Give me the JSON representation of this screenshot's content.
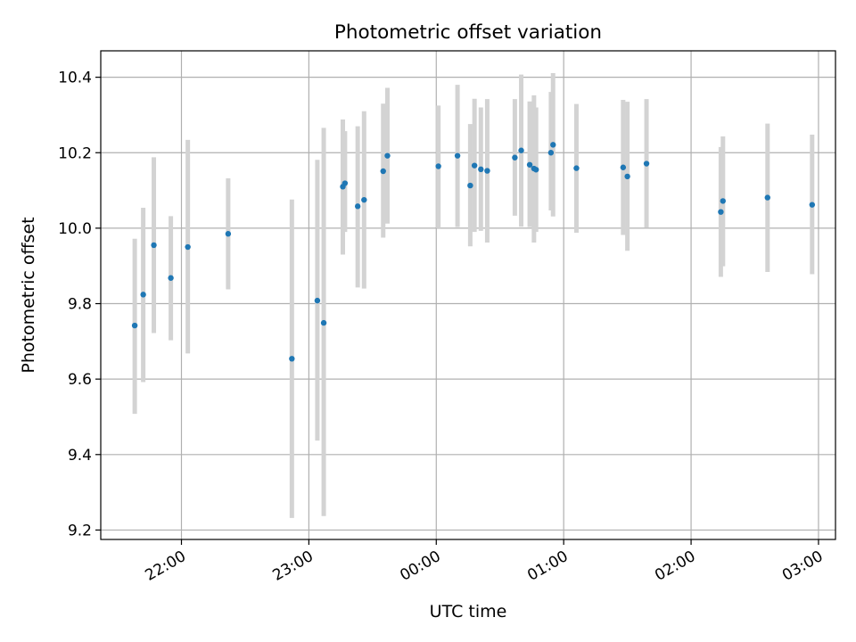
{
  "chart_data": {
    "type": "scatter",
    "title": "Photometric offset variation",
    "xlabel": "UTC time",
    "ylabel": "Photometric offset",
    "x_unit": "UTC time of night (evening date → next date)",
    "xlim": [
      "21:22",
      "03:08"
    ],
    "ylim": [
      9.175,
      10.47
    ],
    "x_ticks": [
      "22:00",
      "23:00",
      "00:00",
      "01:00",
      "02:00",
      "03:00"
    ],
    "y_ticks": [
      "9.2",
      "9.4",
      "9.6",
      "9.8",
      "10.0",
      "10.2",
      "10.4"
    ],
    "grid": true,
    "colors": {
      "points": "#1f77b4",
      "errorbars": "#d3d3d3",
      "grid": "#b0b0b0"
    },
    "series": [
      {
        "points": [
          {
            "t": "21:38",
            "y": 9.742,
            "lo": 9.508,
            "hi": 9.972
          },
          {
            "t": "21:42",
            "y": 9.824,
            "lo": 9.592,
            "hi": 10.054
          },
          {
            "t": "21:47",
            "y": 9.955,
            "lo": 9.722,
            "hi": 10.188
          },
          {
            "t": "21:55",
            "y": 9.868,
            "lo": 9.703,
            "hi": 10.032
          },
          {
            "t": "22:03",
            "y": 9.95,
            "lo": 9.668,
            "hi": 10.234
          },
          {
            "t": "22:22",
            "y": 9.985,
            "lo": 9.838,
            "hi": 10.132
          },
          {
            "t": "22:52",
            "y": 9.654,
            "lo": 9.232,
            "hi": 10.076
          },
          {
            "t": "23:04",
            "y": 9.808,
            "lo": 9.437,
            "hi": 10.181
          },
          {
            "t": "23:07",
            "y": 9.749,
            "lo": 9.237,
            "hi": 10.266
          },
          {
            "t": "23:16",
            "y": 10.11,
            "lo": 9.93,
            "hi": 10.288
          },
          {
            "t": "23:17",
            "y": 10.119,
            "lo": 9.99,
            "hi": 10.257
          },
          {
            "t": "23:23",
            "y": 10.058,
            "lo": 9.843,
            "hi": 10.27
          },
          {
            "t": "23:26",
            "y": 10.075,
            "lo": 9.84,
            "hi": 10.31
          },
          {
            "t": "23:35",
            "y": 10.151,
            "lo": 9.975,
            "hi": 10.33
          },
          {
            "t": "23:37",
            "y": 10.192,
            "lo": 10.012,
            "hi": 10.372
          },
          {
            "t": "00:01",
            "y": 10.164,
            "lo": 10.0,
            "hi": 10.325
          },
          {
            "t": "00:10",
            "y": 10.192,
            "lo": 10.003,
            "hi": 10.38
          },
          {
            "t": "00:16",
            "y": 10.113,
            "lo": 9.952,
            "hi": 10.276
          },
          {
            "t": "00:18",
            "y": 10.166,
            "lo": 9.99,
            "hi": 10.343
          },
          {
            "t": "00:21",
            "y": 10.156,
            "lo": 9.993,
            "hi": 10.32
          },
          {
            "t": "00:24",
            "y": 10.152,
            "lo": 9.962,
            "hi": 10.342
          },
          {
            "t": "00:37",
            "y": 10.187,
            "lo": 10.033,
            "hi": 10.342
          },
          {
            "t": "00:40",
            "y": 10.206,
            "lo": 10.004,
            "hi": 10.407
          },
          {
            "t": "00:44",
            "y": 10.168,
            "lo": 10.003,
            "hi": 10.336
          },
          {
            "t": "00:46",
            "y": 10.158,
            "lo": 9.962,
            "hi": 10.352
          },
          {
            "t": "00:47",
            "y": 10.155,
            "lo": 9.99,
            "hi": 10.32
          },
          {
            "t": "00:54",
            "y": 10.2,
            "lo": 10.047,
            "hi": 10.361
          },
          {
            "t": "00:55",
            "y": 10.221,
            "lo": 10.031,
            "hi": 10.411
          },
          {
            "t": "01:06",
            "y": 10.159,
            "lo": 9.988,
            "hi": 10.329
          },
          {
            "t": "01:28",
            "y": 10.161,
            "lo": 9.982,
            "hi": 10.34
          },
          {
            "t": "01:30",
            "y": 10.137,
            "lo": 9.94,
            "hi": 10.335
          },
          {
            "t": "01:39",
            "y": 10.171,
            "lo": 10.001,
            "hi": 10.342
          },
          {
            "t": "02:14",
            "y": 10.043,
            "lo": 9.871,
            "hi": 10.215
          },
          {
            "t": "02:15",
            "y": 10.072,
            "lo": 9.899,
            "hi": 10.243
          },
          {
            "t": "02:36",
            "y": 10.081,
            "lo": 9.884,
            "hi": 10.277
          },
          {
            "t": "02:57",
            "y": 10.062,
            "lo": 9.878,
            "hi": 10.248
          }
        ]
      }
    ]
  }
}
